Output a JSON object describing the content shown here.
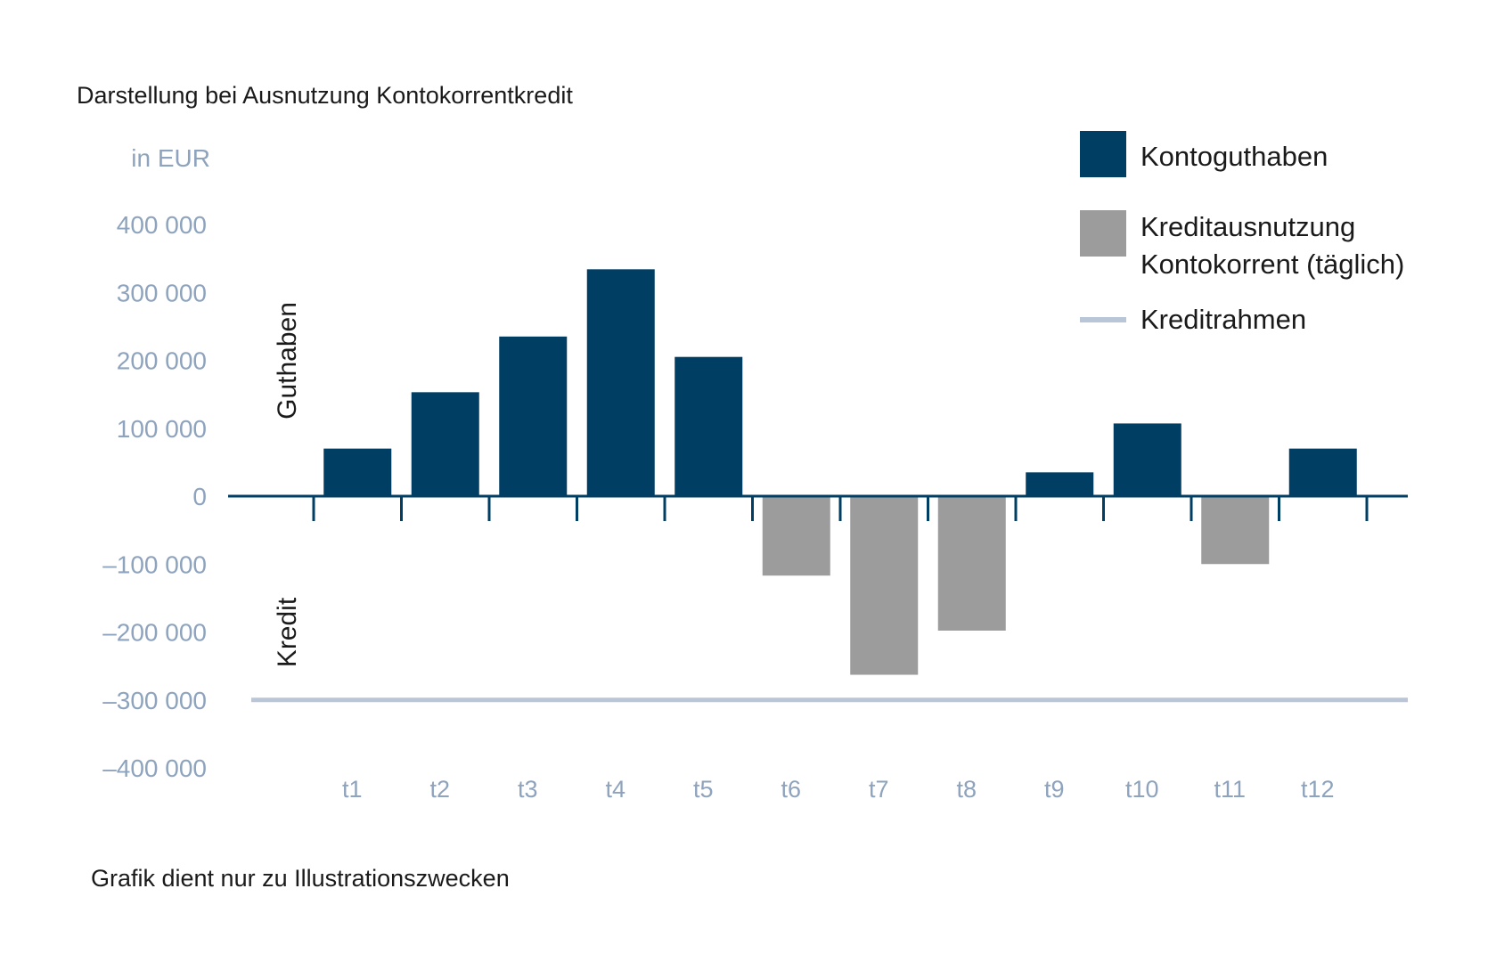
{
  "chart_data": {
    "type": "bar",
    "title": "Darstellung bei Ausnutzung Kontokorrentkredit",
    "unit_label": "in EUR",
    "categories": [
      "t1",
      "t2",
      "t3",
      "t4",
      "t5",
      "t6",
      "t7",
      "t8",
      "t9",
      "t10",
      "t11",
      "t12"
    ],
    "values": [
      70000,
      153000,
      235000,
      334000,
      205000,
      -117000,
      -263000,
      -198000,
      35000,
      107000,
      -100000,
      70000
    ],
    "y_ticks": [
      400000,
      300000,
      200000,
      100000,
      0,
      -100000,
      -200000,
      -300000,
      -400000
    ],
    "y_tick_labels": [
      "400 000",
      "300 000",
      "200 000",
      "100 000",
      "0",
      "–100 000",
      "–200 000",
      "–300 000",
      "–400 000"
    ],
    "ylim": [
      -400000,
      400000
    ],
    "credit_limit": -300000,
    "upper_region_label": "Guthaben",
    "lower_region_label": "Kredit",
    "legend": {
      "placement": "top-right",
      "positive": "Kontoguthaben",
      "negative_line1": "Kreditausnutzung",
      "negative_line2": "Kontokorrent (täglich)",
      "limit": "Kreditrahmen"
    },
    "colors": {
      "positive": "#003f63",
      "negative": "#9c9c9c",
      "limit": "#b9c6d8",
      "axis_text": "#8ea3bd",
      "axis": "#003f63"
    },
    "grid": false
  },
  "footnote": "Grafik dient nur zu Illustrationszwecken"
}
